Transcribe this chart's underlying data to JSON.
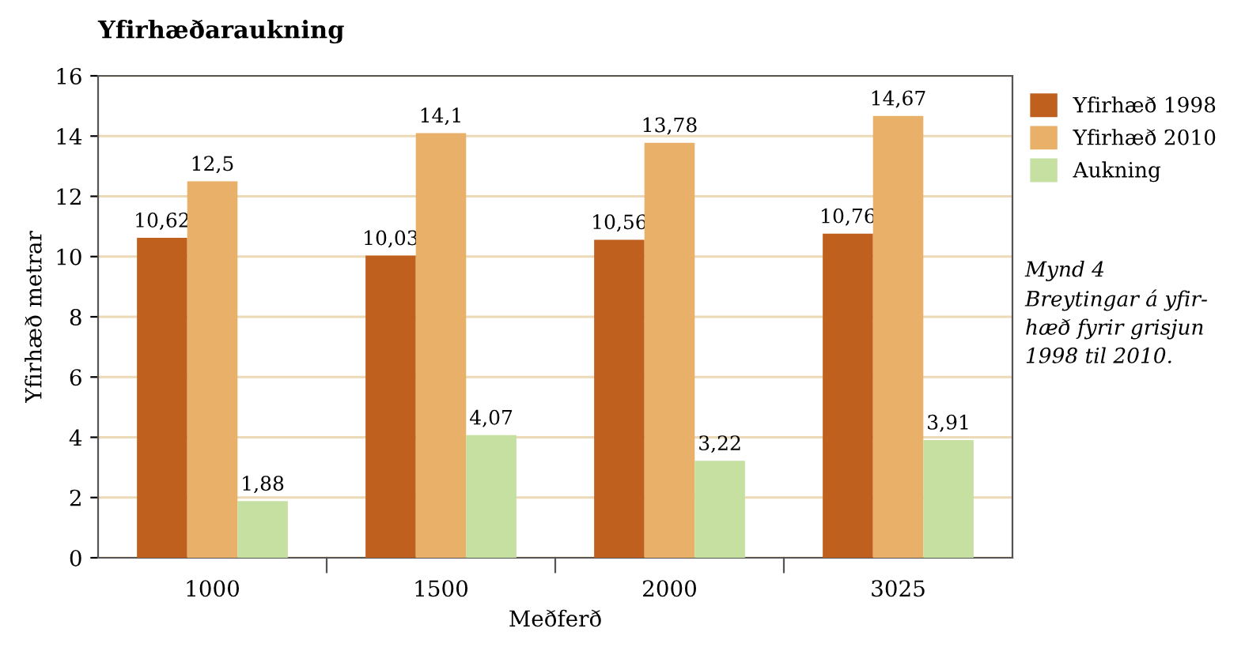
{
  "chart_data": {
    "type": "bar",
    "title": "Yfirhæðaraukning",
    "xlabel": "Meðferð",
    "ylabel": "Yfirhæð metrar",
    "categories": [
      "1000",
      "1500",
      "2000",
      "3025"
    ],
    "series": [
      {
        "name": "Yfirhæð 1998",
        "color": "#c0601e",
        "values": [
          10.62,
          10.03,
          10.56,
          10.76
        ],
        "value_labels": [
          "10,62",
          "10,03",
          "10,56",
          "10,76"
        ]
      },
      {
        "name": "Yfirhæð 2010",
        "color": "#e8b068",
        "values": [
          12.5,
          14.1,
          13.78,
          14.67
        ],
        "value_labels": [
          "12,5",
          "14,1",
          "13,78",
          "14,67"
        ]
      },
      {
        "name": "Aukning",
        "color": "#c5e0a0",
        "values": [
          1.88,
          4.07,
          3.22,
          3.91
        ],
        "value_labels": [
          "1,88",
          "4,07",
          "3,22",
          "3,91"
        ]
      }
    ],
    "ylim": [
      0,
      16
    ],
    "yticks": [
      0,
      2,
      4,
      6,
      8,
      10,
      12,
      14,
      16
    ],
    "grid": "y",
    "legend": "top right",
    "annotations": [
      "Mynd 4\nBreytingar á yfir-\nhæð fyrir grisjun\n1998 til 2010."
    ]
  }
}
